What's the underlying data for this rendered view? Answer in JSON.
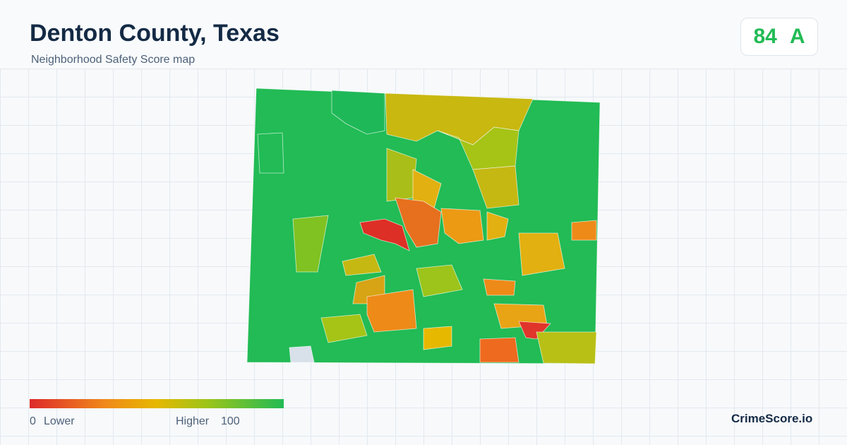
{
  "header": {
    "title": "Denton County, Texas",
    "subtitle": "Neighborhood Safety Score map"
  },
  "score": {
    "value": 84,
    "grade": "A"
  },
  "legend": {
    "min": 0,
    "min_label": "Lower",
    "max_label": "Higher",
    "max": 100
  },
  "brand": "CrimeScore.io"
}
